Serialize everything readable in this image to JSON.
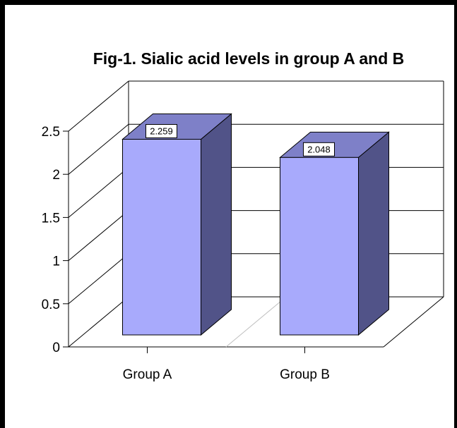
{
  "chart_data": {
    "type": "bar",
    "title": "Fig-1. Sialic acid levels in group A and B",
    "categories": [
      "Group A",
      "Group B"
    ],
    "values": [
      2.259,
      2.048
    ],
    "data_labels": [
      "2.259",
      "2.048"
    ],
    "yticks": [
      "0",
      "0.5",
      "1",
      "1.5",
      "2",
      "2.5"
    ],
    "ylim": [
      0,
      2.5
    ],
    "xlabel": "",
    "ylabel": "",
    "grid": true,
    "style": "3d",
    "legend": "none",
    "colors": {
      "bar_front": "#a8aafc",
      "bar_top": "#7e80c8",
      "bar_side": "#515388"
    }
  }
}
